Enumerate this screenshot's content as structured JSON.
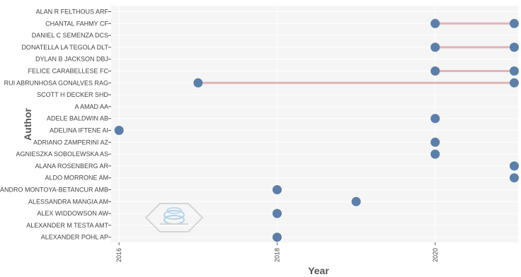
{
  "chart_data": {
    "type": "scatter",
    "subtype": "dumbbell",
    "xlabel": "Year",
    "ylabel": "Author",
    "xlim": [
      2015.9,
      2021.05
    ],
    "x_ticks": [
      2016,
      2018,
      2020
    ],
    "grid": true,
    "legend": "none",
    "colors": {
      "point": "#5b7faa",
      "segment": "#e2b3b6",
      "plot_background": "#f5f5f5"
    },
    "categories": [
      "ALAN R FELTHOUS ARF",
      "CHANTAL FAHMY CF",
      "DANIEL C SEMENZA DCS",
      "DONATELLA LA TEGOLA DLT",
      "DYLAN B JACKSON DBJ",
      "FELICE CARABELLESE FC",
      "RUI ABRUNHOSA GONALVES RAG",
      "SCOTT H DECKER SHD",
      "A AMAD AA",
      "ADELE BALDWIN AB",
      "ADELINA IFTENE AI",
      "ADRIANO ZAMPERINI AZ",
      "AGNIESZKA SOBOLEWSKA AS",
      "ALANA ROSENBERG AR",
      "ALDO MORRONE AM",
      "ALEJANDRO MONTOYA-BETANCUR AMB",
      "ALESSANDRA MANGIA AM",
      "ALEX WIDDOWSON AW",
      "ALEXANDER M TESTA AMT",
      "ALEXANDER POHL AP"
    ],
    "segments": [
      {
        "author": "CHANTAL FAHMY CF",
        "start": 2020,
        "end": 2021
      },
      {
        "author": "DONATELLA LA TEGOLA DLT",
        "start": 2020,
        "end": 2021
      },
      {
        "author": "FELICE CARABELLESE FC",
        "start": 2020,
        "end": 2021
      },
      {
        "author": "RUI ABRUNHOSA GONALVES RAG",
        "start": 2017,
        "end": 2021
      }
    ],
    "points": [
      {
        "author": "CHANTAL FAHMY CF",
        "year": 2020
      },
      {
        "author": "CHANTAL FAHMY CF",
        "year": 2021
      },
      {
        "author": "DONATELLA LA TEGOLA DLT",
        "year": 2020
      },
      {
        "author": "DONATELLA LA TEGOLA DLT",
        "year": 2021
      },
      {
        "author": "FELICE CARABELLESE FC",
        "year": 2020
      },
      {
        "author": "FELICE CARABELLESE FC",
        "year": 2021
      },
      {
        "author": "RUI ABRUNHOSA GONALVES RAG",
        "year": 2017
      },
      {
        "author": "RUI ABRUNHOSA GONALVES RAG",
        "year": 2021
      },
      {
        "author": "ADELE BALDWIN AB",
        "year": 2020
      },
      {
        "author": "ADELINA IFTENE AI",
        "year": 2016
      },
      {
        "author": "ADRIANO ZAMPERINI AZ",
        "year": 2020
      },
      {
        "author": "AGNIESZKA SOBOLEWSKA AS",
        "year": 2020
      },
      {
        "author": "ALANA ROSENBERG AR",
        "year": 2021
      },
      {
        "author": "ALDO MORRONE AM",
        "year": 2021
      },
      {
        "author": "ALEJANDRO MONTOYA-BETANCUR AMB",
        "year": 2018
      },
      {
        "author": "ALESSANDRA MANGIA AM",
        "year": 2019
      },
      {
        "author": "ALEX WIDDOWSON AW",
        "year": 2018
      },
      {
        "author": "ALEXANDER POHL AP",
        "year": 2018
      }
    ]
  },
  "watermark": {
    "icon": "bibliometrix-logo-watermark"
  }
}
